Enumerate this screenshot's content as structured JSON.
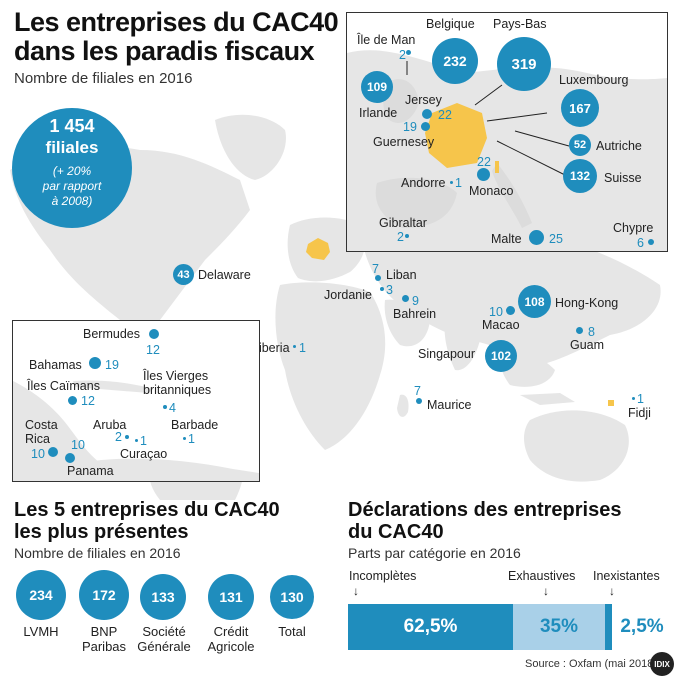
{
  "header": {
    "title_line1": "Les entreprises du CAC40",
    "title_line2": "dans les paradis fiscaux",
    "subtitle": "Nombre de filiales en 2016"
  },
  "total_badge": {
    "number": "1 454",
    "label": "filiales",
    "note_line1": "(+ 20%",
    "note_line2": "par rapport",
    "note_line3": "à 2008)"
  },
  "europe_inset": [
    {
      "name": "Belgique",
      "value": "232"
    },
    {
      "name": "Pays-Bas",
      "value": "319"
    },
    {
      "name": "Île de Man",
      "value": "2"
    },
    {
      "name": "Irlande",
      "value": "109"
    },
    {
      "name": "Jersey",
      "value": "22"
    },
    {
      "name": "Guernesey",
      "value": "19"
    },
    {
      "name": "Luxembourg",
      "value": "167"
    },
    {
      "name": "Autriche",
      "value": "52"
    },
    {
      "name": "Suisse",
      "value": "132"
    },
    {
      "name": "Monaco",
      "value": "22"
    },
    {
      "name": "Andorre",
      "value": "1"
    },
    {
      "name": "Gibraltar",
      "value": "2"
    },
    {
      "name": "Malte",
      "value": "25"
    },
    {
      "name": "Chypre",
      "value": "6"
    }
  ],
  "world": [
    {
      "name": "Delaware",
      "value": "43"
    },
    {
      "name": "Liban",
      "value": "7"
    },
    {
      "name": "Jordanie",
      "value": "3"
    },
    {
      "name": "Bahrein",
      "value": "9"
    },
    {
      "name": "Hong-Kong",
      "value": "108"
    },
    {
      "name": "Macao",
      "value": "10"
    },
    {
      "name": "Guam",
      "value": "8"
    },
    {
      "name": "Liberia",
      "value": "1"
    },
    {
      "name": "Singapour",
      "value": "102"
    },
    {
      "name": "Maurice",
      "value": "7"
    },
    {
      "name": "Fidji",
      "value": "1"
    }
  ],
  "caribbean_inset": [
    {
      "name": "Bermudes",
      "value": "12"
    },
    {
      "name": "Bahamas",
      "value": "19"
    },
    {
      "name": "Îles Caïmans",
      "value": "12"
    },
    {
      "name": "Îles Vierges britanniques",
      "value": "4"
    },
    {
      "name": "Costa Rica",
      "value": "10"
    },
    {
      "name": "Aruba",
      "value": "2"
    },
    {
      "name": "Barbade",
      "value": "1"
    },
    {
      "name": "Panama",
      "value": "10"
    },
    {
      "name": "Curaçao",
      "value": "1"
    }
  ],
  "top5": {
    "title_line1": "Les 5 entreprises du CAC40",
    "title_line2": "les plus présentes",
    "subtitle": "Nombre de filiales en 2016",
    "items": [
      {
        "value": "234",
        "name": "LVMH"
      },
      {
        "value": "172",
        "name": "BNP Paribas"
      },
      {
        "value": "133",
        "name": "Société Générale"
      },
      {
        "value": "131",
        "name": "Crédit Agricole"
      },
      {
        "value": "130",
        "name": "Total"
      }
    ]
  },
  "declarations": {
    "title_line1": "Déclarations des entreprises",
    "title_line2": "du CAC40",
    "subtitle": "Parts par catégorie en 2016"
  },
  "chart_data": {
    "type": "bar",
    "stacked": true,
    "orientation": "horizontal",
    "categories": [
      "Incomplètes",
      "Exhaustives",
      "Inexistantes"
    ],
    "values": [
      62.5,
      35,
      2.5
    ],
    "value_labels": [
      "62,5%",
      "35%",
      "2,5%"
    ],
    "colors": [
      "#1f8dbd",
      "#a9d0e8",
      "#1f8dbd"
    ],
    "unit": "%"
  },
  "footer": {
    "source": "Source : Oxfam (mai 2018)",
    "logo": "IDIX"
  },
  "colors": {
    "accent": "#1f8dbd",
    "light_accent": "#a9d0e8",
    "land": "#e6e6e6",
    "france": "#f6c54b"
  }
}
